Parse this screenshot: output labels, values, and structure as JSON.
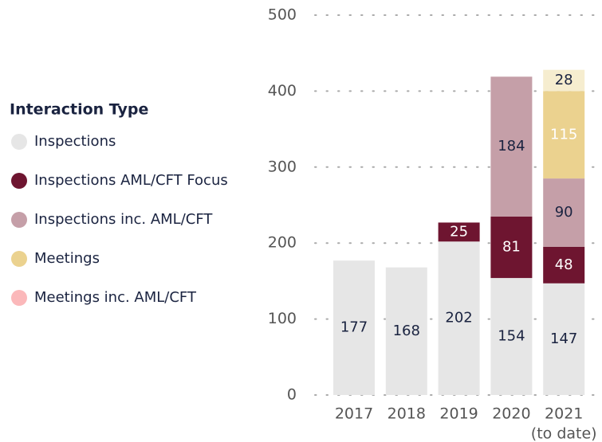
{
  "chart_data": {
    "type": "stacked_bar",
    "legend_title": "Interaction Type",
    "categories": [
      "2017",
      "2018",
      "2019",
      "2020",
      [
        "2021",
        "(to date)"
      ]
    ],
    "series": [
      {
        "name": "Inspections",
        "color": "#e6e6e6",
        "legend_color": "#e6e6e6",
        "label_color": "#1a2340",
        "values": [
          177,
          168,
          202,
          154,
          147
        ]
      },
      {
        "name": "Inspections AML/CFT Focus",
        "color": "#6e1530",
        "legend_color": "#6e1530",
        "label_color": "#ffffff",
        "values": [
          null,
          null,
          25,
          81,
          48
        ]
      },
      {
        "name": "Inspections inc. AML/CFT",
        "color": "#c59fa8",
        "legend_color": "#c59fa8",
        "label_color": "#1a2340",
        "values": [
          null,
          null,
          null,
          184,
          90
        ]
      },
      {
        "name": "Meetings",
        "color": "#ebd28f",
        "legend_color": "#ebd28f",
        "label_color": "#ffffff",
        "values": [
          null,
          null,
          null,
          null,
          115
        ]
      },
      {
        "name": "Meetings inc. AML/CFT",
        "color": "#f6edcf",
        "legend_color": "#fbb8ba",
        "label_color": "#1a2340",
        "values": [
          null,
          null,
          null,
          null,
          28
        ]
      }
    ],
    "ylim": [
      0,
      500
    ],
    "yticks": [
      0,
      100,
      200,
      300,
      400,
      500
    ],
    "grid": true
  }
}
